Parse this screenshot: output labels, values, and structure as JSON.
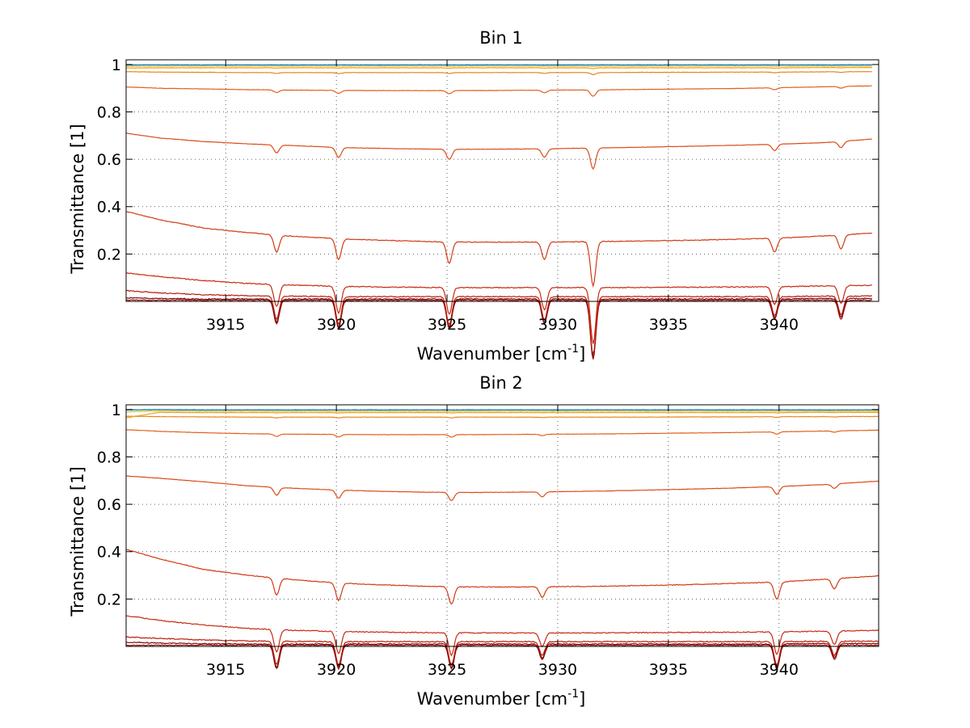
{
  "chart_data": [
    {
      "type": "line",
      "title": "Bin 1",
      "xlabel": "Wavenumber [cm",
      "xlabel_superscript": "-1",
      "xlabel_suffix": "]",
      "ylabel": "Transmittance [1]",
      "xlim": [
        3910.5,
        3944.5
      ],
      "ylim": [
        0.0,
        1.02
      ],
      "xticks": [
        3915,
        3920,
        3925,
        3930,
        3935,
        3940
      ],
      "yticks": [
        0.2,
        0.4,
        0.6,
        0.8,
        1
      ],
      "ytick_labels": [
        "0.2",
        "0.4",
        "0.6",
        "0.8",
        "1"
      ],
      "grid": "dotted",
      "x": [
        3910.5,
        3912,
        3914,
        3916,
        3918,
        3920,
        3922,
        3924,
        3926,
        3928,
        3930,
        3932,
        3934,
        3936,
        3938,
        3940,
        3942,
        3944.2
      ],
      "dips": [
        {
          "x": 3917.3,
          "rel": 0.1
        },
        {
          "x": 3920.1,
          "rel": 0.12
        },
        {
          "x": 3925.1,
          "rel": 0.12
        },
        {
          "x": 3929.4,
          "rel": 0.1
        },
        {
          "x": 3931.6,
          "rel": 0.25
        },
        {
          "x": 3939.8,
          "rel": 0.08
        },
        {
          "x": 3942.8,
          "rel": 0.08
        }
      ],
      "series": [
        {
          "color": "#a01010",
          "values": [
            0.005,
            0.005,
            0.005,
            0.005,
            0.005,
            0.005,
            0.005,
            0.005,
            0.005,
            0.005,
            0.005,
            0.005,
            0.005,
            0.005,
            0.005,
            0.005,
            0.005,
            0.005
          ]
        },
        {
          "color": "#7a0a0a",
          "values": [
            0.015,
            0.012,
            0.01,
            0.01,
            0.01,
            0.01,
            0.01,
            0.01,
            0.01,
            0.01,
            0.01,
            0.01,
            0.01,
            0.01,
            0.01,
            0.01,
            0.012,
            0.012
          ]
        },
        {
          "color": "#b81c0c",
          "values": [
            0.045,
            0.036,
            0.028,
            0.024,
            0.022,
            0.02,
            0.02,
            0.02,
            0.02,
            0.02,
            0.02,
            0.02,
            0.02,
            0.02,
            0.02,
            0.02,
            0.022,
            0.022
          ]
        },
        {
          "color": "#c82a10",
          "values": [
            0.12,
            0.105,
            0.088,
            0.076,
            0.069,
            0.064,
            0.061,
            0.059,
            0.058,
            0.058,
            0.058,
            0.058,
            0.059,
            0.06,
            0.061,
            0.062,
            0.065,
            0.068
          ]
        },
        {
          "color": "#d23a14",
          "values": [
            0.38,
            0.345,
            0.31,
            0.29,
            0.275,
            0.265,
            0.258,
            0.253,
            0.25,
            0.25,
            0.251,
            0.253,
            0.255,
            0.258,
            0.262,
            0.267,
            0.276,
            0.288
          ]
        },
        {
          "color": "#dc4c18",
          "values": [
            0.71,
            0.69,
            0.675,
            0.665,
            0.658,
            0.65,
            0.646,
            0.643,
            0.642,
            0.643,
            0.645,
            0.648,
            0.651,
            0.655,
            0.659,
            0.664,
            0.67,
            0.685
          ]
        },
        {
          "color": "#e0601c",
          "values": [
            0.905,
            0.9,
            0.897,
            0.894,
            0.892,
            0.891,
            0.89,
            0.89,
            0.89,
            0.891,
            0.892,
            0.893,
            0.895,
            0.897,
            0.899,
            0.902,
            0.906,
            0.91
          ]
        },
        {
          "color": "#e8841e",
          "values": [
            0.97,
            0.968,
            0.967,
            0.966,
            0.966,
            0.966,
            0.966,
            0.966,
            0.966,
            0.966,
            0.966,
            0.966,
            0.967,
            0.967,
            0.968,
            0.968,
            0.969,
            0.97
          ]
        },
        {
          "color": "#f0a020",
          "values": [
            0.985,
            0.986,
            0.986,
            0.986,
            0.986,
            0.986,
            0.986,
            0.986,
            0.986,
            0.986,
            0.986,
            0.986,
            0.986,
            0.986,
            0.986,
            0.986,
            0.987,
            0.987
          ]
        },
        {
          "color": "#f5c024",
          "values": [
            0.992,
            0.993,
            0.993,
            0.993,
            0.993,
            0.993,
            0.993,
            0.993,
            0.993,
            0.993,
            0.993,
            0.993,
            0.993,
            0.993,
            0.993,
            0.993,
            0.993,
            0.993
          ]
        },
        {
          "color": "#38c0d8",
          "values": [
            0.997,
            0.998,
            0.997,
            0.998,
            0.997,
            0.998,
            0.997,
            0.998,
            0.997,
            0.998,
            0.997,
            0.998,
            0.997,
            0.998,
            0.997,
            0.998,
            0.997,
            0.998
          ]
        },
        {
          "color": "#1f7fd0",
          "values": [
            0.999,
            0.999,
            0.999,
            0.999,
            0.999,
            0.999,
            0.999,
            0.999,
            0.999,
            0.999,
            0.999,
            0.999,
            0.999,
            0.999,
            0.999,
            0.999,
            0.999,
            0.999
          ]
        }
      ]
    },
    {
      "type": "line",
      "title": "Bin 2",
      "xlabel": "Wavenumber [cm",
      "xlabel_superscript": "-1",
      "xlabel_suffix": "]",
      "ylabel": "Transmittance [1]",
      "xlim": [
        3910.5,
        3944.5
      ],
      "ylim": [
        0.0,
        1.02
      ],
      "xticks": [
        3915,
        3920,
        3925,
        3930,
        3935,
        3940
      ],
      "yticks": [
        0.2,
        0.4,
        0.6,
        0.8,
        1
      ],
      "ytick_labels": [
        "0.2",
        "0.4",
        "0.6",
        "0.8",
        "1"
      ],
      "grid": "dotted",
      "x": [
        3910.5,
        3912,
        3914,
        3916,
        3918,
        3920,
        3922,
        3924,
        3926,
        3928,
        3930,
        3932,
        3934,
        3936,
        3938,
        3940,
        3942,
        3944.5
      ],
      "dips": [
        {
          "x": 3917.3,
          "rel": 0.1
        },
        {
          "x": 3920.1,
          "rel": 0.1
        },
        {
          "x": 3925.2,
          "rel": 0.1
        },
        {
          "x": 3929.3,
          "rel": 0.06
        },
        {
          "x": 3939.9,
          "rel": 0.1
        },
        {
          "x": 3942.5,
          "rel": 0.06
        }
      ],
      "series": [
        {
          "color": "#a01010",
          "values": [
            0.005,
            0.005,
            0.005,
            0.005,
            0.005,
            0.005,
            0.005,
            0.005,
            0.005,
            0.005,
            0.005,
            0.005,
            0.005,
            0.005,
            0.005,
            0.005,
            0.005,
            0.005
          ]
        },
        {
          "color": "#7a0a0a",
          "values": [
            0.018,
            0.014,
            0.011,
            0.01,
            0.01,
            0.01,
            0.01,
            0.01,
            0.01,
            0.01,
            0.01,
            0.01,
            0.01,
            0.01,
            0.01,
            0.01,
            0.012,
            0.012
          ]
        },
        {
          "color": "#b81c0c",
          "values": [
            0.04,
            0.034,
            0.027,
            0.023,
            0.021,
            0.02,
            0.02,
            0.02,
            0.02,
            0.02,
            0.02,
            0.02,
            0.02,
            0.02,
            0.02,
            0.02,
            0.021,
            0.022
          ]
        },
        {
          "color": "#c82a10",
          "values": [
            0.13,
            0.11,
            0.09,
            0.076,
            0.068,
            0.063,
            0.06,
            0.058,
            0.057,
            0.057,
            0.057,
            0.057,
            0.058,
            0.059,
            0.06,
            0.061,
            0.064,
            0.068
          ]
        },
        {
          "color": "#d23a14",
          "values": [
            0.41,
            0.37,
            0.325,
            0.3,
            0.282,
            0.268,
            0.26,
            0.254,
            0.251,
            0.251,
            0.252,
            0.254,
            0.257,
            0.261,
            0.266,
            0.272,
            0.283,
            0.298
          ]
        },
        {
          "color": "#dc4c18",
          "values": [
            0.72,
            0.71,
            0.695,
            0.678,
            0.668,
            0.66,
            0.655,
            0.651,
            0.65,
            0.651,
            0.653,
            0.656,
            0.66,
            0.664,
            0.669,
            0.675,
            0.683,
            0.698
          ]
        },
        {
          "color": "#e0601c",
          "values": [
            0.915,
            0.908,
            0.902,
            0.898,
            0.896,
            0.895,
            0.894,
            0.894,
            0.894,
            0.895,
            0.896,
            0.897,
            0.899,
            0.901,
            0.903,
            0.906,
            0.909,
            0.913
          ]
        },
        {
          "color": "#e8841e",
          "values": [
            0.972,
            0.97,
            0.969,
            0.968,
            0.968,
            0.968,
            0.968,
            0.968,
            0.968,
            0.968,
            0.968,
            0.968,
            0.968,
            0.969,
            0.969,
            0.97,
            0.97,
            0.971
          ]
        },
        {
          "color": "#f0a020",
          "values": [
            0.965,
            0.988,
            0.987,
            0.987,
            0.987,
            0.987,
            0.987,
            0.987,
            0.987,
            0.987,
            0.987,
            0.987,
            0.987,
            0.987,
            0.987,
            0.987,
            0.988,
            0.988
          ]
        },
        {
          "color": "#f5c024",
          "values": [
            0.99,
            0.994,
            0.993,
            0.993,
            0.993,
            0.993,
            0.993,
            0.993,
            0.993,
            0.993,
            0.993,
            0.993,
            0.993,
            0.993,
            0.993,
            0.993,
            0.993,
            0.993
          ]
        },
        {
          "color": "#38c0d8",
          "values": [
            0.997,
            0.999,
            0.997,
            0.998,
            0.997,
            0.998,
            0.997,
            0.998,
            0.997,
            0.998,
            0.997,
            0.998,
            0.997,
            0.998,
            0.997,
            0.998,
            0.997,
            0.998
          ]
        },
        {
          "color": "#1f7fd0",
          "values": [
            0.999,
            1.0,
            0.999,
            0.999,
            0.999,
            0.999,
            0.999,
            0.999,
            0.999,
            0.999,
            0.999,
            0.999,
            0.999,
            0.999,
            0.999,
            0.999,
            0.999,
            0.999
          ]
        }
      ]
    }
  ]
}
